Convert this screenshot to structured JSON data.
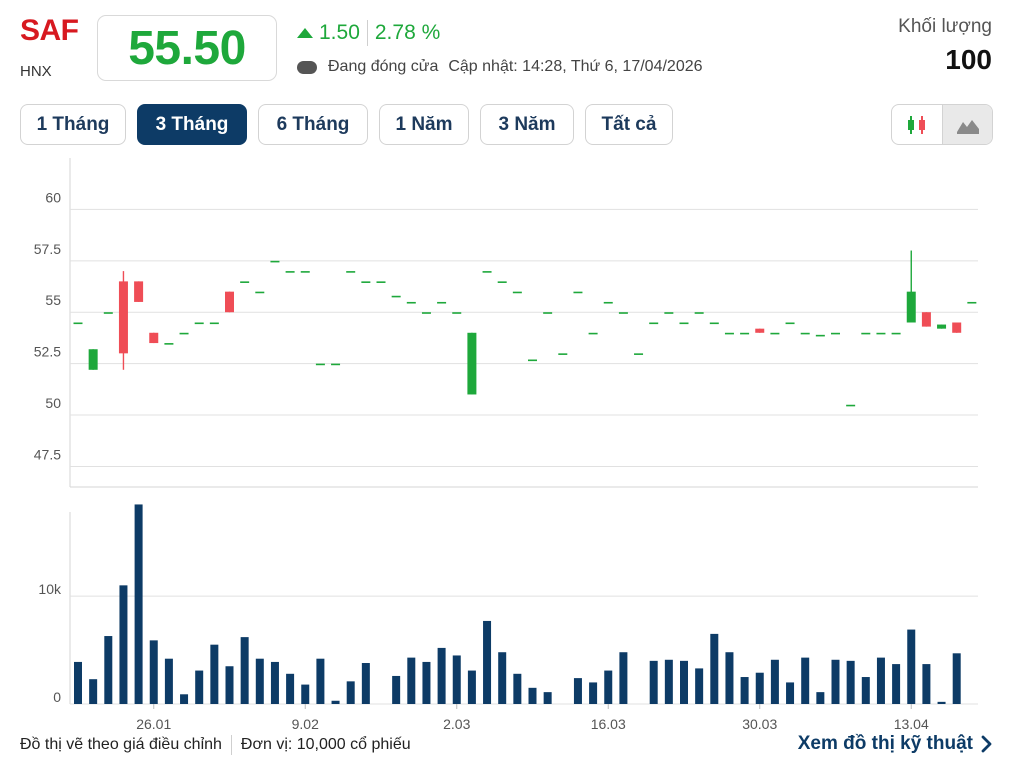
{
  "header": {
    "ticker": "SAF",
    "exchange": "HNX",
    "price": "55.50",
    "change": "1.50",
    "change_pct": "2.78 %",
    "status": "Đang đóng cửa",
    "updated": "Cập nhật: 14:28, Thứ 6, 17/04/2026",
    "volume_label": "Khối lượng",
    "volume_value": "100",
    "colors": {
      "ticker": "#d71920",
      "up": "#1ea83b",
      "down": "#ef4d56",
      "volume": "#0d3b66"
    }
  },
  "tabs": [
    {
      "label": "1 Tháng",
      "active": false
    },
    {
      "label": "3 Tháng",
      "active": true
    },
    {
      "label": "6 Tháng",
      "active": false
    },
    {
      "label": "1 Năm",
      "active": false
    },
    {
      "label": "3 Năm",
      "active": false
    },
    {
      "label": "Tất cả",
      "active": false
    }
  ],
  "chart_toggle": {
    "icons": [
      "candlestick-icon",
      "area-chart-icon"
    ],
    "selected": "area-chart-icon"
  },
  "chart_data": {
    "type": "candlestick",
    "price_axis": {
      "ticks": [
        47.5,
        50,
        52.5,
        55,
        57.5,
        60
      ],
      "tick_labels": [
        "47.5",
        "50",
        "52.5",
        "55",
        "57.5",
        "60"
      ],
      "ylim": [
        46.5,
        62.5
      ]
    },
    "volume_axis": {
      "ticks": [
        0,
        10000
      ],
      "tick_labels": [
        "0",
        "10k"
      ],
      "ylim": [
        0,
        17800
      ]
    },
    "x_tick_labels": [
      {
        "label": "26.01",
        "index": 5
      },
      {
        "label": "9.02",
        "index": 15
      },
      {
        "label": "2.03",
        "index": 25
      },
      {
        "label": "16.03",
        "index": 35
      },
      {
        "label": "30.03",
        "index": 45
      },
      {
        "label": "13.04",
        "index": 55
      }
    ],
    "candles": [
      {
        "o": 54.5,
        "h": 54.5,
        "l": 54.5,
        "c": 54.5,
        "v": 3900
      },
      {
        "o": 52.2,
        "h": 53.2,
        "l": 52.2,
        "c": 53.2,
        "v": 2300
      },
      {
        "o": 55.0,
        "h": 55.0,
        "l": 55.0,
        "c": 55.0,
        "v": 6300
      },
      {
        "o": 56.5,
        "h": 57.0,
        "l": 52.2,
        "c": 53.0,
        "v": 11000
      },
      {
        "o": 56.5,
        "h": 56.5,
        "l": 55.5,
        "c": 55.5,
        "v": 18500
      },
      {
        "o": 54.0,
        "h": 54.0,
        "l": 53.5,
        "c": 53.5,
        "v": 5900
      },
      {
        "o": 53.5,
        "h": 53.5,
        "l": 53.5,
        "c": 53.5,
        "v": 4200
      },
      {
        "o": 54.0,
        "h": 54.0,
        "l": 54.0,
        "c": 54.0,
        "v": 900
      },
      {
        "o": 54.5,
        "h": 54.5,
        "l": 54.5,
        "c": 54.5,
        "v": 3100
      },
      {
        "o": 54.5,
        "h": 54.5,
        "l": 54.5,
        "c": 54.5,
        "v": 5500
      },
      {
        "o": 56.0,
        "h": 56.0,
        "l": 55.0,
        "c": 55.0,
        "v": 3500
      },
      {
        "o": 56.5,
        "h": 56.5,
        "l": 56.5,
        "c": 56.5,
        "v": 6200
      },
      {
        "o": 56.0,
        "h": 56.0,
        "l": 56.0,
        "c": 56.0,
        "v": 4200
      },
      {
        "o": 57.5,
        "h": 57.5,
        "l": 57.5,
        "c": 57.5,
        "v": 3900
      },
      {
        "o": 57.0,
        "h": 57.0,
        "l": 57.0,
        "c": 57.0,
        "v": 2800
      },
      {
        "o": 57.0,
        "h": 57.0,
        "l": 57.0,
        "c": 57.0,
        "v": 1800
      },
      {
        "o": 52.5,
        "h": 52.5,
        "l": 52.5,
        "c": 52.5,
        "v": 4200
      },
      {
        "o": 52.5,
        "h": 52.5,
        "l": 52.5,
        "c": 52.5,
        "v": 300
      },
      {
        "o": 57.0,
        "h": 57.0,
        "l": 57.0,
        "c": 57.0,
        "v": 2100
      },
      {
        "o": 56.5,
        "h": 56.5,
        "l": 56.5,
        "c": 56.5,
        "v": 3800
      },
      {
        "o": 56.5,
        "h": 56.5,
        "l": 56.5,
        "c": 56.5,
        "v": null
      },
      {
        "o": 55.8,
        "h": 55.8,
        "l": 55.8,
        "c": 55.8,
        "v": 2600
      },
      {
        "o": 55.5,
        "h": 55.5,
        "l": 55.5,
        "c": 55.5,
        "v": 4300
      },
      {
        "o": 55.0,
        "h": 55.0,
        "l": 55.0,
        "c": 55.0,
        "v": 3900
      },
      {
        "o": 55.5,
        "h": 55.5,
        "l": 55.5,
        "c": 55.5,
        "v": 5200
      },
      {
        "o": 55.0,
        "h": 55.0,
        "l": 55.0,
        "c": 55.0,
        "v": 4500
      },
      {
        "o": 51.0,
        "h": 54.0,
        "l": 51.0,
        "c": 54.0,
        "v": 3100
      },
      {
        "o": 57.0,
        "h": 57.0,
        "l": 57.0,
        "c": 57.0,
        "v": 7700
      },
      {
        "o": 56.5,
        "h": 56.5,
        "l": 56.5,
        "c": 56.5,
        "v": 4800
      },
      {
        "o": 56.0,
        "h": 56.0,
        "l": 56.0,
        "c": 56.0,
        "v": 2800
      },
      {
        "o": 52.7,
        "h": 52.7,
        "l": 52.7,
        "c": 52.7,
        "v": 1500
      },
      {
        "o": 55.0,
        "h": 55.0,
        "l": 55.0,
        "c": 55.0,
        "v": 1100
      },
      {
        "o": 53.0,
        "h": 53.0,
        "l": 53.0,
        "c": 53.0,
        "v": null
      },
      {
        "o": 56.0,
        "h": 56.0,
        "l": 56.0,
        "c": 56.0,
        "v": 2400
      },
      {
        "o": 54.0,
        "h": 54.0,
        "l": 54.0,
        "c": 54.0,
        "v": 2000
      },
      {
        "o": 55.5,
        "h": 55.5,
        "l": 55.5,
        "c": 55.5,
        "v": 3100
      },
      {
        "o": 55.0,
        "h": 55.0,
        "l": 55.0,
        "c": 55.0,
        "v": 4800
      },
      {
        "o": 53.0,
        "h": 53.0,
        "l": 53.0,
        "c": 53.0,
        "v": null
      },
      {
        "o": 54.5,
        "h": 54.5,
        "l": 54.5,
        "c": 54.5,
        "v": 4000
      },
      {
        "o": 55.0,
        "h": 55.0,
        "l": 55.0,
        "c": 55.0,
        "v": 4100
      },
      {
        "o": 54.5,
        "h": 54.5,
        "l": 54.5,
        "c": 54.5,
        "v": 4000
      },
      {
        "o": 55.0,
        "h": 55.0,
        "l": 55.0,
        "c": 55.0,
        "v": 3300
      },
      {
        "o": 54.5,
        "h": 54.5,
        "l": 54.5,
        "c": 54.5,
        "v": 6500
      },
      {
        "o": 54.0,
        "h": 54.0,
        "l": 54.0,
        "c": 54.0,
        "v": 4800
      },
      {
        "o": 54.0,
        "h": 54.0,
        "l": 54.0,
        "c": 54.0,
        "v": 2500
      },
      {
        "o": 54.2,
        "h": 54.2,
        "l": 54.0,
        "c": 54.0,
        "v": 2900
      },
      {
        "o": 54.0,
        "h": 54.0,
        "l": 54.0,
        "c": 54.0,
        "v": 4100
      },
      {
        "o": 54.5,
        "h": 54.5,
        "l": 54.5,
        "c": 54.5,
        "v": 2000
      },
      {
        "o": 54.0,
        "h": 54.0,
        "l": 54.0,
        "c": 54.0,
        "v": 4300
      },
      {
        "o": 53.9,
        "h": 53.9,
        "l": 53.9,
        "c": 53.9,
        "v": 1100
      },
      {
        "o": 54.0,
        "h": 54.0,
        "l": 54.0,
        "c": 54.0,
        "v": 4100
      },
      {
        "o": 50.5,
        "h": 50.5,
        "l": 50.5,
        "c": 50.5,
        "v": 4000
      },
      {
        "o": 54.0,
        "h": 54.0,
        "l": 54.0,
        "c": 54.0,
        "v": 2500
      },
      {
        "o": 54.0,
        "h": 54.0,
        "l": 54.0,
        "c": 54.0,
        "v": 4300
      },
      {
        "o": 54.0,
        "h": 54.0,
        "l": 54.0,
        "c": 54.0,
        "v": 3700
      },
      {
        "o": 54.5,
        "h": 58.0,
        "l": 54.5,
        "c": 56.0,
        "v": 6900
      },
      {
        "o": 55.0,
        "h": 55.0,
        "l": 54.3,
        "c": 54.3,
        "v": 3700
      },
      {
        "o": 54.2,
        "h": 54.4,
        "l": 54.2,
        "c": 54.4,
        "v": 200
      },
      {
        "o": 54.5,
        "h": 54.5,
        "l": 54.0,
        "c": 54.0,
        "v": 4700
      },
      {
        "o": 55.5,
        "h": 55.5,
        "l": 55.5,
        "c": 55.5,
        "v": null
      }
    ]
  },
  "footer": {
    "note": "Đồ thị vẽ theo giá điều chỉnh",
    "unit": "Đơn vị: 10,000 cổ phiếu",
    "link": "Xem đồ thị kỹ thuật"
  }
}
